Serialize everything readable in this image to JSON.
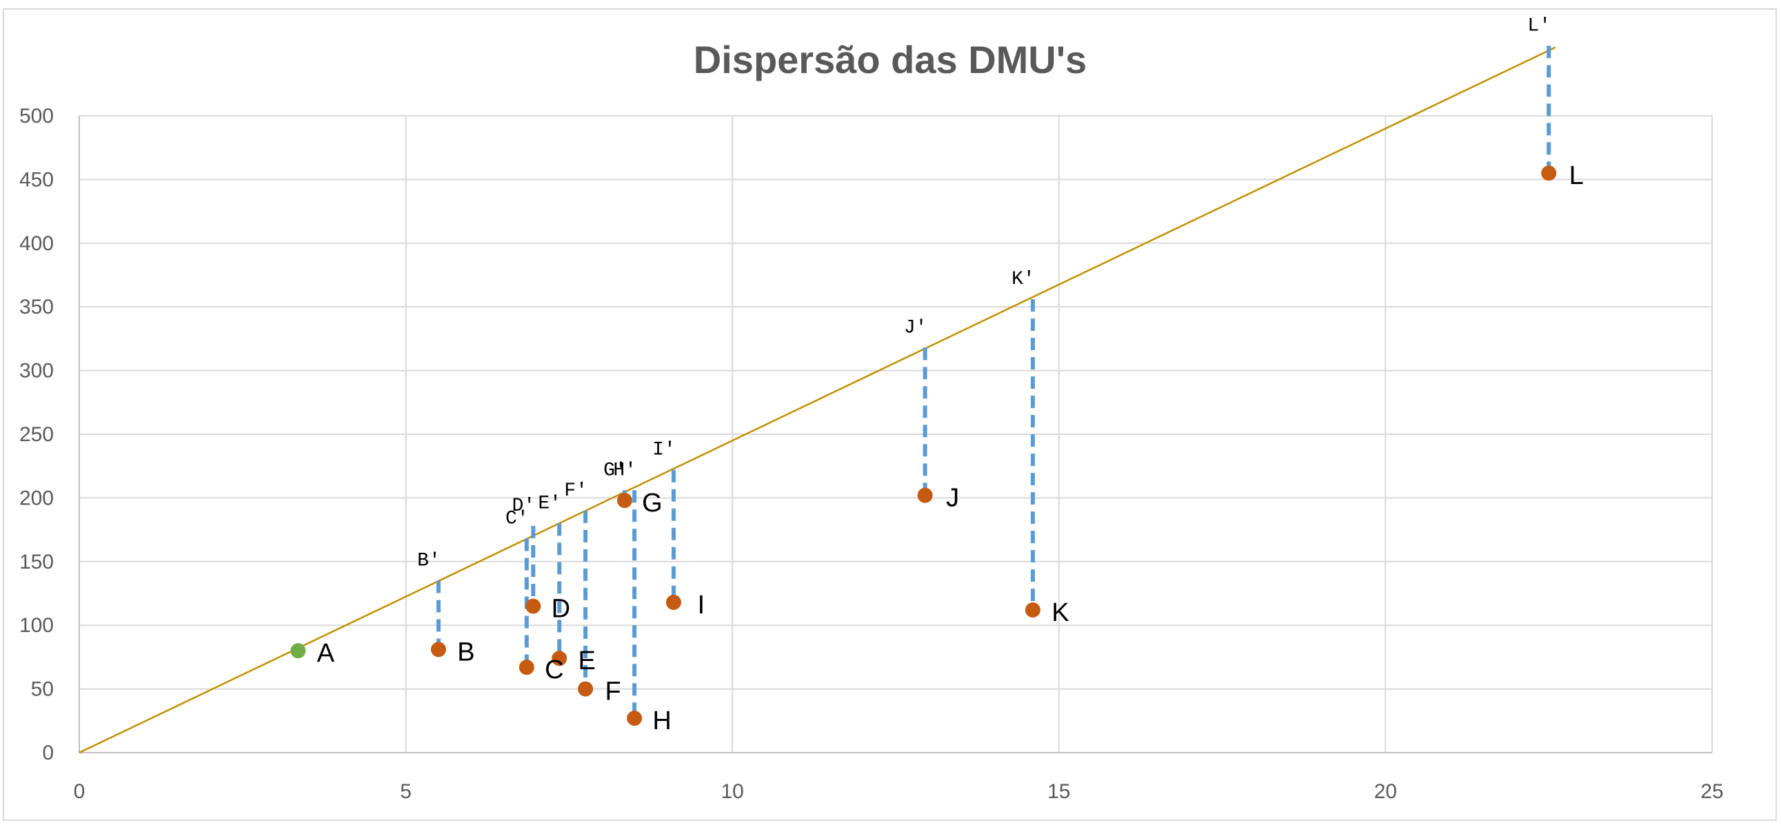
{
  "chart_data": {
    "type": "scatter",
    "title": "Dispersão das DMU's",
    "xlabel": "",
    "ylabel": "",
    "xlim": [
      0,
      25
    ],
    "ylim": [
      0,
      500
    ],
    "x_ticks": [
      0,
      5,
      10,
      15,
      20,
      25
    ],
    "y_ticks": [
      0,
      50,
      100,
      150,
      200,
      250,
      300,
      350,
      400,
      450,
      500
    ],
    "grid": true,
    "legend": "none",
    "frontier": {
      "slope": 24.5,
      "x_range": [
        0,
        22.6
      ],
      "color": "#BF9000"
    },
    "points": [
      {
        "label": "A",
        "x": 3.35,
        "y": 80,
        "efficient": true
      },
      {
        "label": "B",
        "x": 5.5,
        "y": 81,
        "projection_label": "B'",
        "projection_y": 135
      },
      {
        "label": "C",
        "x": 6.85,
        "y": 67,
        "projection_label": "C'",
        "projection_y": 168
      },
      {
        "label": "D",
        "x": 6.95,
        "y": 115,
        "projection_label": "D'",
        "projection_y": 178
      },
      {
        "label": "E",
        "x": 7.35,
        "y": 74,
        "projection_label": "E'",
        "projection_y": 180
      },
      {
        "label": "F",
        "x": 7.75,
        "y": 50,
        "projection_label": "F'",
        "projection_y": 190
      },
      {
        "label": "G",
        "x": 8.35,
        "y": 198,
        "projection_label": "G'",
        "projection_y": 206
      },
      {
        "label": "H",
        "x": 8.5,
        "y": 27,
        "projection_label": "H'",
        "projection_y": 206
      },
      {
        "label": "I",
        "x": 9.1,
        "y": 118,
        "projection_label": "I'",
        "projection_y": 222
      },
      {
        "label": "J",
        "x": 12.95,
        "y": 202,
        "projection_label": "J'",
        "projection_y": 318
      },
      {
        "label": "K",
        "x": 14.6,
        "y": 112,
        "projection_label": "K'",
        "projection_y": 356
      },
      {
        "label": "L",
        "x": 22.5,
        "y": 455,
        "projection_label": "L'",
        "projection_y": 555
      }
    ],
    "colors": {
      "efficient_point": "#70AD47",
      "inefficient_point": "#C55A11",
      "projection_line": "#5B9BD5",
      "grid": "#d9d9d9",
      "axis": "#bfbfbf"
    }
  }
}
